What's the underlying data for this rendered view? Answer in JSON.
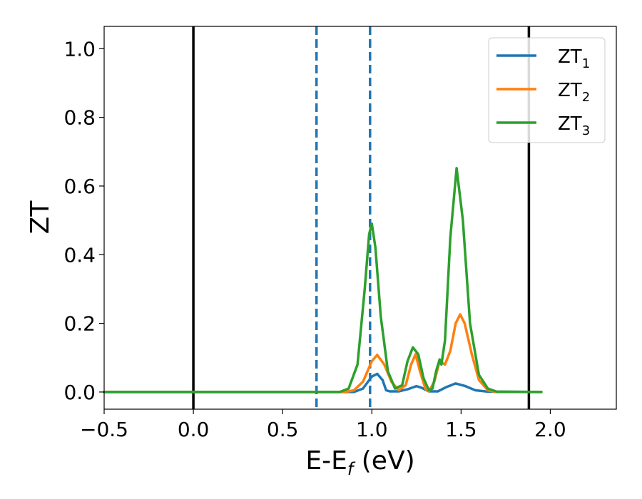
{
  "chart_data": {
    "type": "line",
    "xlabel_main": "E-E",
    "xlabel_sub": "f",
    "xlabel_unit": " (eV)",
    "ylabel": "ZT",
    "xlim": [
      -0.5,
      2.37
    ],
    "ylim": [
      -0.05,
      1.065
    ],
    "xticks": [
      -0.5,
      0.0,
      0.5,
      1.0,
      1.5,
      2.0
    ],
    "xtick_labels": [
      "−0.5",
      "0.0",
      "0.5",
      "1.0",
      "1.5",
      "2.0"
    ],
    "yticks": [
      0.0,
      0.2,
      0.4,
      0.6,
      0.8,
      1.0
    ],
    "ytick_labels": [
      "0.0",
      "0.2",
      "0.4",
      "0.6",
      "0.8",
      "1.0"
    ],
    "grid": false,
    "legend_position": "top-right",
    "vlines": [
      {
        "x": 0.0,
        "style": "solid",
        "color": "#000000"
      },
      {
        "x": 1.88,
        "style": "solid",
        "color": "#000000"
      },
      {
        "x": 0.69,
        "style": "dashed",
        "color": "#1f77b4"
      },
      {
        "x": 0.99,
        "style": "dashed",
        "color": "#1f77b4"
      }
    ],
    "series": [
      {
        "name": "ZT",
        "sub": "1",
        "color": "#1f77b4",
        "points": [
          [
            -0.5,
            0
          ],
          [
            0.9,
            0
          ],
          [
            0.95,
            0.01
          ],
          [
            1.0,
            0.045
          ],
          [
            1.03,
            0.053
          ],
          [
            1.06,
            0.035
          ],
          [
            1.08,
            0.005
          ],
          [
            1.1,
            0.002
          ],
          [
            1.15,
            0.002
          ],
          [
            1.2,
            0.008
          ],
          [
            1.25,
            0.017
          ],
          [
            1.28,
            0.012
          ],
          [
            1.32,
            0.002
          ],
          [
            1.37,
            0.002
          ],
          [
            1.42,
            0.015
          ],
          [
            1.47,
            0.025
          ],
          [
            1.52,
            0.018
          ],
          [
            1.58,
            0.005
          ],
          [
            1.65,
            0.001
          ],
          [
            1.95,
            0
          ]
        ]
      },
      {
        "name": "ZT",
        "sub": "2",
        "color": "#ff7f0e",
        "points": [
          [
            -0.5,
            0
          ],
          [
            0.85,
            0
          ],
          [
            0.9,
            0.005
          ],
          [
            0.95,
            0.03
          ],
          [
            1.0,
            0.09
          ],
          [
            1.03,
            0.108
          ],
          [
            1.07,
            0.08
          ],
          [
            1.11,
            0.03
          ],
          [
            1.15,
            0.005
          ],
          [
            1.19,
            0.02
          ],
          [
            1.22,
            0.08
          ],
          [
            1.245,
            0.11
          ],
          [
            1.27,
            0.06
          ],
          [
            1.3,
            0.01
          ],
          [
            1.32,
            0.002
          ],
          [
            1.35,
            0.03
          ],
          [
            1.38,
            0.09
          ],
          [
            1.41,
            0.08
          ],
          [
            1.44,
            0.12
          ],
          [
            1.47,
            0.2
          ],
          [
            1.495,
            0.226
          ],
          [
            1.52,
            0.2
          ],
          [
            1.56,
            0.11
          ],
          [
            1.6,
            0.035
          ],
          [
            1.65,
            0.005
          ],
          [
            1.7,
            0
          ],
          [
            1.95,
            0
          ]
        ]
      },
      {
        "name": "ZT",
        "sub": "3",
        "color": "#2ca02c",
        "points": [
          [
            -0.5,
            0
          ],
          [
            0.82,
            0
          ],
          [
            0.87,
            0.01
          ],
          [
            0.92,
            0.08
          ],
          [
            0.96,
            0.3
          ],
          [
            0.985,
            0.46
          ],
          [
            1.0,
            0.49
          ],
          [
            1.02,
            0.42
          ],
          [
            1.05,
            0.22
          ],
          [
            1.09,
            0.06
          ],
          [
            1.13,
            0.01
          ],
          [
            1.17,
            0.02
          ],
          [
            1.2,
            0.09
          ],
          [
            1.23,
            0.13
          ],
          [
            1.26,
            0.11
          ],
          [
            1.29,
            0.04
          ],
          [
            1.32,
            0.005
          ],
          [
            1.34,
            0.01
          ],
          [
            1.36,
            0.06
          ],
          [
            1.38,
            0.095
          ],
          [
            1.39,
            0.08
          ],
          [
            1.41,
            0.15
          ],
          [
            1.44,
            0.45
          ],
          [
            1.475,
            0.652
          ],
          [
            1.51,
            0.5
          ],
          [
            1.55,
            0.2
          ],
          [
            1.6,
            0.05
          ],
          [
            1.65,
            0.01
          ],
          [
            1.7,
            0.001
          ],
          [
            1.95,
            0
          ]
        ]
      }
    ]
  }
}
